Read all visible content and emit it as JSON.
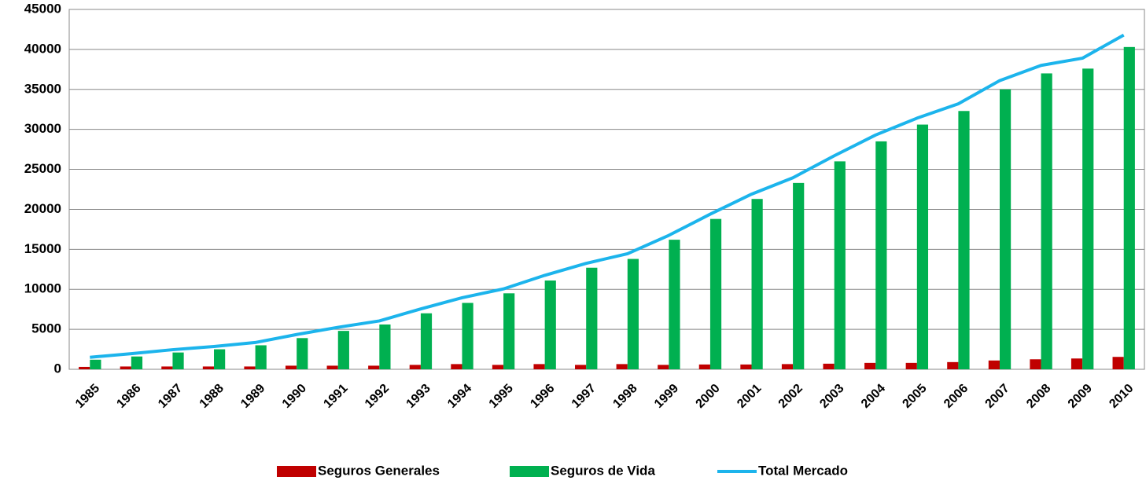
{
  "chart_data": {
    "type": "bar_line",
    "categories": [
      "1985",
      "1986",
      "1987",
      "1988",
      "1989",
      "1990",
      "1991",
      "1992",
      "1993",
      "1994",
      "1995",
      "1996",
      "1997",
      "1998",
      "1999",
      "2000",
      "2001",
      "2002",
      "2003",
      "2004",
      "2005",
      "2006",
      "2007",
      "2008",
      "2009",
      "2010"
    ],
    "series": [
      {
        "name": "Seguros Generales",
        "color": "#c00000",
        "kind": "bar",
        "values": [
          300,
          350,
          350,
          350,
          350,
          450,
          450,
          450,
          550,
          650,
          550,
          650,
          550,
          650,
          550,
          600,
          600,
          650,
          700,
          800,
          800,
          900,
          1100,
          1250,
          1350,
          1550
        ]
      },
      {
        "name": "Seguros de Vida",
        "color": "#00b050",
        "kind": "bar",
        "values": [
          1200,
          1600,
          2100,
          2500,
          3000,
          3900,
          4800,
          5600,
          7000,
          8300,
          9500,
          11100,
          12700,
          13800,
          16200,
          18800,
          21300,
          23300,
          26000,
          28500,
          30600,
          32300,
          35000,
          37000,
          37600,
          40300
        ]
      },
      {
        "name": "Total Mercado",
        "color": "#1cb4ec",
        "kind": "line",
        "values": [
          1500,
          1950,
          2450,
          2850,
          3350,
          4350,
          5250,
          6050,
          7550,
          8950,
          10050,
          11750,
          13250,
          14450,
          16750,
          19400,
          21900,
          23950,
          26700,
          29300,
          31400,
          33200,
          36100,
          38000,
          38900,
          41800
        ]
      }
    ],
    "ylim": [
      0,
      45000
    ],
    "yticks": [
      0,
      5000,
      10000,
      15000,
      20000,
      25000,
      30000,
      35000,
      40000,
      45000
    ],
    "grid": true,
    "legend": "bottom"
  }
}
